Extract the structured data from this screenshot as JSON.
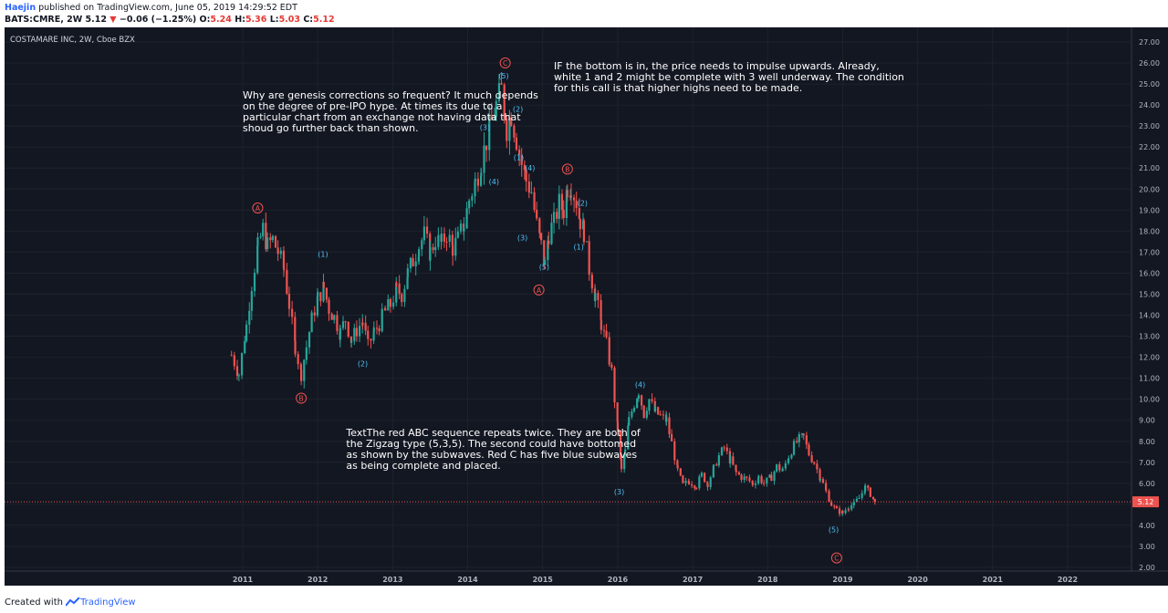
{
  "header": {
    "author": "Haejin",
    "published": "published on TradingView.com, June 05, 2019 14:29:52 EDT",
    "symbol": "BATS:CMRE, 2W",
    "last": "5.12",
    "change": "−0.06 (−1.25%)",
    "o_label": "O:",
    "o_value": "5.24",
    "h_label": "H:",
    "h_value": "5.36",
    "l_label": "L:",
    "l_value": "5.03",
    "c_label": "C:",
    "c_value": "5.12"
  },
  "footer": {
    "created_with": "Created with",
    "brand": "TradingView"
  },
  "colors": {
    "background": "#131722",
    "up": "#26a69a",
    "down": "#ef5350",
    "label_red": "#ef5350",
    "label_blue": "#4fc3f7",
    "text": "#d1d4dc"
  },
  "chart_data": {
    "type": "candlestick",
    "title": "COSTAMARE INC, 2W, Cboe BZX",
    "x_ticks": [
      "2011",
      "2012",
      "2013",
      "2014",
      "2015",
      "2016",
      "2017",
      "2018",
      "2019",
      "2020",
      "2021",
      "2022"
    ],
    "y_ticks": [
      "2.00",
      "3.00",
      "4.00",
      "5.00",
      "6.00",
      "7.00",
      "8.00",
      "9.00",
      "10.00",
      "11.00",
      "12.00",
      "13.00",
      "14.00",
      "15.00",
      "16.00",
      "17.00",
      "18.00",
      "19.00",
      "20.00",
      "21.00",
      "22.00",
      "23.00",
      "24.00",
      "25.00",
      "26.00",
      "27.00"
    ],
    "ylim": [
      2,
      27
    ],
    "last_price_label": "5.12",
    "price_path": [
      [
        2010.85,
        12.1
      ],
      [
        2010.95,
        11.2
      ],
      [
        2011.05,
        13.5
      ],
      [
        2011.12,
        15.5
      ],
      [
        2011.2,
        17.2
      ],
      [
        2011.27,
        18.1
      ],
      [
        2011.33,
        17.3
      ],
      [
        2011.4,
        17.6
      ],
      [
        2011.47,
        17.0
      ],
      [
        2011.55,
        16.2
      ],
      [
        2011.62,
        14.5
      ],
      [
        2011.7,
        12.5
      ],
      [
        2011.78,
        11.2
      ],
      [
        2011.85,
        12.5
      ],
      [
        2011.92,
        13.8
      ],
      [
        2012.0,
        14.8
      ],
      [
        2012.08,
        15.3
      ],
      [
        2012.15,
        14.3
      ],
      [
        2012.22,
        13.9
      ],
      [
        2012.3,
        13.2
      ],
      [
        2012.37,
        13.8
      ],
      [
        2012.45,
        12.8
      ],
      [
        2012.52,
        13.3
      ],
      [
        2012.6,
        13.7
      ],
      [
        2012.67,
        12.5
      ],
      [
        2012.75,
        13.2
      ],
      [
        2012.82,
        13.6
      ],
      [
        2012.9,
        14.2
      ],
      [
        2012.97,
        14.5
      ],
      [
        2013.05,
        15.2
      ],
      [
        2013.12,
        15.0
      ],
      [
        2013.2,
        16.0
      ],
      [
        2013.27,
        16.6
      ],
      [
        2013.35,
        17.3
      ],
      [
        2013.42,
        17.8
      ],
      [
        2013.5,
        17.0
      ],
      [
        2013.57,
        17.6
      ],
      [
        2013.65,
        17.4
      ],
      [
        2013.72,
        17.9
      ],
      [
        2013.8,
        17.2
      ],
      [
        2013.87,
        17.6
      ],
      [
        2013.95,
        18.3
      ],
      [
        2014.02,
        19.5
      ],
      [
        2014.1,
        20.3
      ],
      [
        2014.18,
        21.3
      ],
      [
        2014.25,
        22.3
      ],
      [
        2014.32,
        23.2
      ],
      [
        2014.38,
        24.0
      ],
      [
        2014.45,
        24.7
      ],
      [
        2014.52,
        22.9
      ],
      [
        2014.58,
        23.6
      ],
      [
        2014.65,
        22.4
      ],
      [
        2014.72,
        21.2
      ],
      [
        2014.78,
        20.4
      ],
      [
        2014.85,
        19.9
      ],
      [
        2014.92,
        18.3
      ],
      [
        2014.98,
        17.3
      ],
      [
        2015.03,
        16.4
      ],
      [
        2015.08,
        17.9
      ],
      [
        2015.15,
        18.4
      ],
      [
        2015.22,
        19.3
      ],
      [
        2015.28,
        19.0
      ],
      [
        2015.33,
        20.1
      ],
      [
        2015.38,
        20.2
      ],
      [
        2015.45,
        19.4
      ],
      [
        2015.5,
        18.5
      ],
      [
        2015.55,
        18.0
      ],
      [
        2015.62,
        16.2
      ],
      [
        2015.7,
        15.0
      ],
      [
        2015.78,
        13.6
      ],
      [
        2015.85,
        12.6
      ],
      [
        2015.92,
        11.3
      ],
      [
        2016.0,
        8.6
      ],
      [
        2016.05,
        6.6
      ],
      [
        2016.1,
        7.5
      ],
      [
        2016.15,
        9.0
      ],
      [
        2016.22,
        9.8
      ],
      [
        2016.28,
        10.4
      ],
      [
        2016.35,
        9.3
      ],
      [
        2016.42,
        10.0
      ],
      [
        2016.5,
        9.4
      ],
      [
        2016.57,
        9.2
      ],
      [
        2016.65,
        9.0
      ],
      [
        2016.72,
        7.9
      ],
      [
        2016.8,
        6.6
      ],
      [
        2016.87,
        5.9
      ],
      [
        2016.95,
        6.1
      ],
      [
        2017.05,
        5.9
      ],
      [
        2017.12,
        6.4
      ],
      [
        2017.2,
        6.0
      ],
      [
        2017.28,
        6.7
      ],
      [
        2017.35,
        7.3
      ],
      [
        2017.42,
        7.7
      ],
      [
        2017.5,
        7.1
      ],
      [
        2017.58,
        6.5
      ],
      [
        2017.65,
        6.3
      ],
      [
        2017.72,
        6.2
      ],
      [
        2017.8,
        6.0
      ],
      [
        2017.88,
        6.3
      ],
      [
        2017.95,
        6.0
      ],
      [
        2018.05,
        6.3
      ],
      [
        2018.12,
        6.8
      ],
      [
        2018.2,
        6.6
      ],
      [
        2018.28,
        7.3
      ],
      [
        2018.35,
        7.8
      ],
      [
        2018.42,
        8.1
      ],
      [
        2018.48,
        8.2
      ],
      [
        2018.55,
        7.4
      ],
      [
        2018.62,
        7.0
      ],
      [
        2018.7,
        6.3
      ],
      [
        2018.78,
        5.6
      ],
      [
        2018.85,
        5.0
      ],
      [
        2018.92,
        4.7
      ],
      [
        2019.0,
        4.6
      ],
      [
        2019.08,
        4.9
      ],
      [
        2019.15,
        5.0
      ],
      [
        2019.22,
        5.3
      ],
      [
        2019.3,
        5.8
      ],
      [
        2019.37,
        5.5
      ],
      [
        2019.43,
        5.12
      ]
    ],
    "wave_labels": [
      {
        "text": "A",
        "x": 2011.2,
        "y": 19.1,
        "style": "red-circle"
      },
      {
        "text": "B",
        "x": 2011.78,
        "y": 10.05,
        "style": "red-circle"
      },
      {
        "text": "C",
        "x": 2014.5,
        "y": 26.0,
        "style": "red-circle"
      },
      {
        "text": "B",
        "x": 2015.33,
        "y": 20.95,
        "style": "red-circle"
      },
      {
        "text": "A",
        "x": 2014.95,
        "y": 15.2,
        "style": "red-circle"
      },
      {
        "text": "C",
        "x": 2018.92,
        "y": 2.45,
        "style": "red-circle"
      },
      {
        "text": "(1)",
        "x": 2012.07,
        "y": 16.9,
        "style": "blue"
      },
      {
        "text": "(2)",
        "x": 2012.6,
        "y": 11.7,
        "style": "blue"
      },
      {
        "text": "(3)",
        "x": 2014.23,
        "y": 22.95,
        "style": "blue"
      },
      {
        "text": "(4)",
        "x": 2014.35,
        "y": 20.35,
        "style": "blue"
      },
      {
        "text": "(5)",
        "x": 2014.48,
        "y": 25.4,
        "style": "blue"
      },
      {
        "text": "(2)",
        "x": 2014.67,
        "y": 23.8,
        "style": "blue"
      },
      {
        "text": "(1)",
        "x": 2014.68,
        "y": 21.5,
        "style": "blue"
      },
      {
        "text": "(4)",
        "x": 2014.83,
        "y": 21.0,
        "style": "blue"
      },
      {
        "text": "(3)",
        "x": 2014.73,
        "y": 17.7,
        "style": "blue"
      },
      {
        "text": "(5)",
        "x": 2015.02,
        "y": 16.3,
        "style": "blue"
      },
      {
        "text": "(2)",
        "x": 2015.53,
        "y": 19.35,
        "style": "blue"
      },
      {
        "text": "(1)",
        "x": 2015.48,
        "y": 17.25,
        "style": "blue"
      },
      {
        "text": "(4)",
        "x": 2016.3,
        "y": 10.7,
        "style": "blue"
      },
      {
        "text": "(3)",
        "x": 2016.02,
        "y": 5.6,
        "style": "blue"
      },
      {
        "text": "(5)",
        "x": 2018.88,
        "y": 3.8,
        "style": "blue"
      }
    ],
    "annotations": [
      {
        "x": 2011.0,
        "y": 24.3,
        "lines": [
          "Why are genesis corrections so frequent? It much depends",
          "on the degree of pre-IPO hype. At times its due to a",
          "particular chart from an exchange not having data that",
          "shoud go further back than shown."
        ]
      },
      {
        "x": 2015.15,
        "y": 25.7,
        "lines": [
          "IF the bottom is in, the price needs to impulse upwards. Already,",
          "white 1 and 2 might be complete with 3 well underway. The condition",
          "for this call is that higher highs need to be made."
        ]
      },
      {
        "x": 2012.38,
        "y": 8.25,
        "lines": [
          "TextThe red ABC sequence repeats twice. They are both of",
          "the Zigzag type (5,3,5). The second could have bottomed",
          "as shown by the subwaves. Red C has five blue subwaves",
          "as being complete and placed."
        ]
      }
    ]
  }
}
